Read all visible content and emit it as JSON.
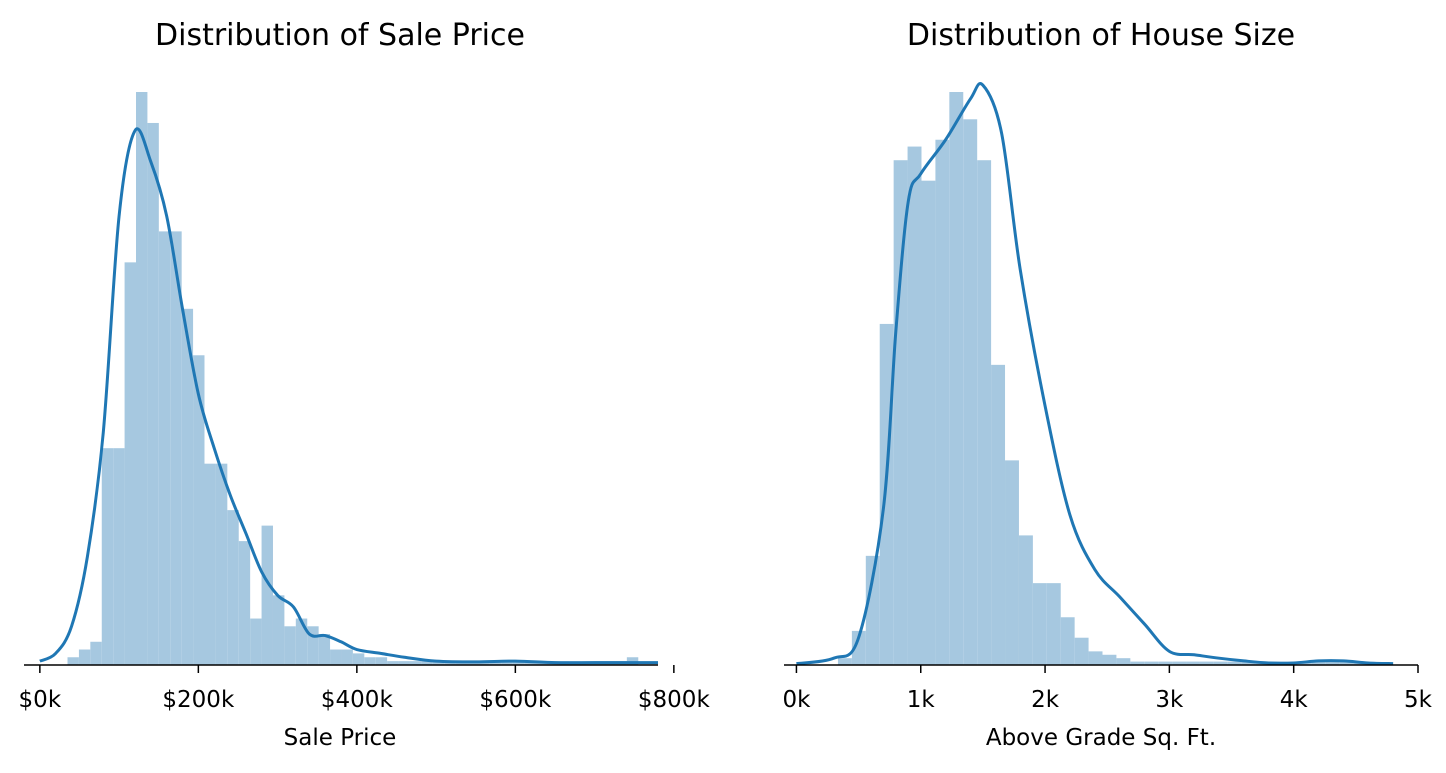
{
  "chart_data": [
    {
      "type": "histogram",
      "title": "Distribution of Sale Price",
      "xlabel": "Sale Price",
      "ylabel": "",
      "xlim": [
        -20000,
        780000
      ],
      "xticks": [
        0,
        200000,
        400000,
        600000,
        800000
      ],
      "xtick_labels": [
        "$0k",
        "$200k",
        "$400k",
        "$600k",
        "$800k"
      ],
      "y_axis_visible": false,
      "grid": false,
      "bins": {
        "x_start": 34900,
        "bin_width": 14404,
        "heights": [
          0.1,
          0.2,
          0.3,
          2.8,
          2.8,
          5.2,
          7.4,
          7.0,
          5.6,
          5.6,
          4.6,
          4.0,
          2.6,
          2.6,
          2.0,
          1.6,
          0.6,
          1.8,
          0.9,
          0.5,
          0.6,
          0.5,
          0.4,
          0.2,
          0.2,
          0.15,
          0.1,
          0.1,
          0.05,
          0.05,
          0.05,
          0.05,
          0.05,
          0.05,
          0.05,
          0.05,
          0.05,
          0.05,
          0.05,
          0.05,
          0.05,
          0.05,
          0.05,
          0.05,
          0.05,
          0.05,
          0.05,
          0.05,
          0.05,
          0.1
        ]
      },
      "kde": {
        "x": [
          0,
          20000,
          40000,
          60000,
          80000,
          100000,
          120000,
          140000,
          160000,
          180000,
          200000,
          220000,
          240000,
          260000,
          280000,
          300000,
          320000,
          340000,
          360000,
          380000,
          400000,
          430000,
          460000,
          500000,
          550000,
          600000,
          650000,
          700000,
          750000,
          780000
        ],
        "y": [
          0.05,
          0.15,
          0.5,
          1.4,
          3.0,
          5.8,
          6.9,
          6.5,
          5.8,
          4.6,
          3.5,
          2.8,
          2.2,
          1.7,
          1.2,
          0.9,
          0.75,
          0.4,
          0.38,
          0.3,
          0.2,
          0.15,
          0.1,
          0.05,
          0.04,
          0.05,
          0.03,
          0.03,
          0.03,
          0.03
        ]
      },
      "colors": {
        "bars": "#a6c8e0",
        "kde": "#1f77b4"
      }
    },
    {
      "type": "histogram",
      "title": "Distribution of House Size",
      "xlabel": "Above Grade Sq. Ft.",
      "ylabel": "",
      "xlim": [
        -100,
        5000
      ],
      "xticks": [
        0,
        1000,
        2000,
        3000,
        4000,
        5000
      ],
      "xtick_labels": [
        "0k",
        "1k",
        "2k",
        "3k",
        "4k",
        "5k"
      ],
      "y_axis_visible": false,
      "grid": false,
      "bins": {
        "x_start": 334,
        "bin_width": 112,
        "heights": [
          0.1,
          0.5,
          1.6,
          5.0,
          7.4,
          7.6,
          7.1,
          7.7,
          8.4,
          8.0,
          7.4,
          4.4,
          3.0,
          1.9,
          1.2,
          1.2,
          0.7,
          0.4,
          0.2,
          0.15,
          0.1,
          0.05,
          0.05,
          0.05,
          0.05,
          0.05,
          0.05,
          0.05,
          0.05,
          0.05,
          0.05,
          0.05,
          0.05,
          0.05,
          0.05,
          0.05,
          0.05,
          0.05
        ]
      },
      "kde": {
        "x": [
          0,
          300,
          500,
          700,
          800,
          900,
          1000,
          1200,
          1400,
          1500,
          1650,
          1800,
          2000,
          2200,
          2400,
          2600,
          2800,
          3000,
          3200,
          3400,
          3600,
          3800,
          4000,
          4200,
          4400,
          4600,
          4800
        ],
        "y": [
          0.02,
          0.1,
          0.4,
          2.3,
          4.9,
          6.8,
          7.2,
          7.7,
          8.3,
          8.5,
          7.8,
          5.8,
          3.8,
          2.2,
          1.4,
          1.0,
          0.6,
          0.2,
          0.15,
          0.1,
          0.06,
          0.03,
          0.03,
          0.06,
          0.06,
          0.03,
          0.02
        ]
      },
      "colors": {
        "bars": "#a6c8e0",
        "kde": "#1f77b4"
      }
    }
  ]
}
